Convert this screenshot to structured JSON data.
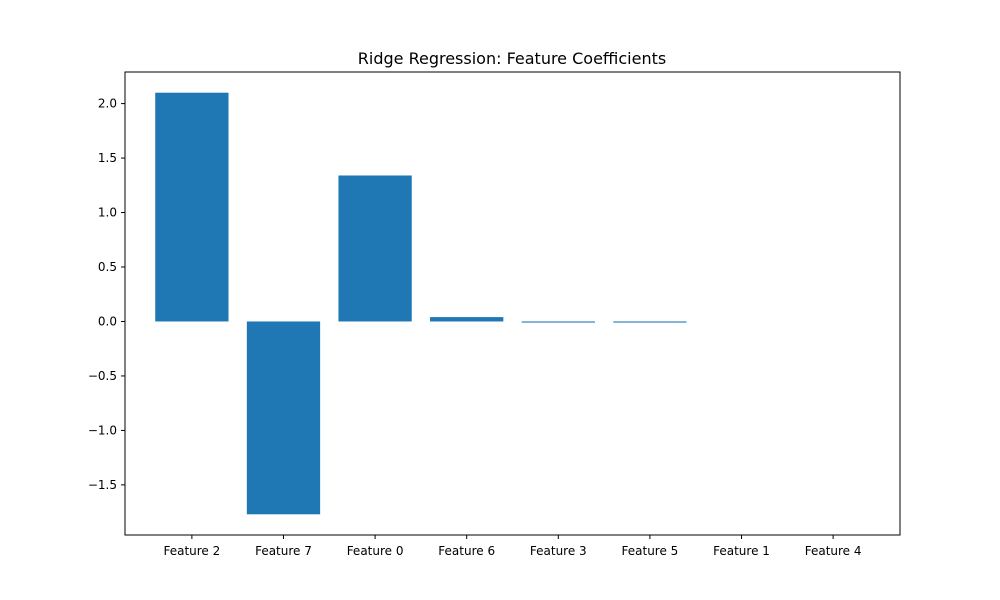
{
  "chart_data": {
    "type": "bar",
    "title": "Ridge Regression: Feature Coefficients",
    "xlabel": "",
    "ylabel": "",
    "categories": [
      "Feature 2",
      "Feature 7",
      "Feature 0",
      "Feature 6",
      "Feature 3",
      "Feature 5",
      "Feature 1",
      "Feature 4"
    ],
    "values": [
      2.1,
      -1.77,
      1.34,
      0.04,
      -0.01,
      -0.01,
      0.0,
      0.0
    ],
    "ylim": [
      -1.96,
      2.29
    ],
    "yticks": [
      -1.5,
      -1.0,
      -0.5,
      0.0,
      0.5,
      1.0,
      1.5,
      2.0
    ],
    "ytick_labels": [
      "−1.5",
      "−1.0",
      "−0.5",
      "0.0",
      "0.5",
      "1.0",
      "1.5",
      "2.0"
    ],
    "grid": false,
    "legend": "none",
    "bar_color": "#1f77b4"
  }
}
